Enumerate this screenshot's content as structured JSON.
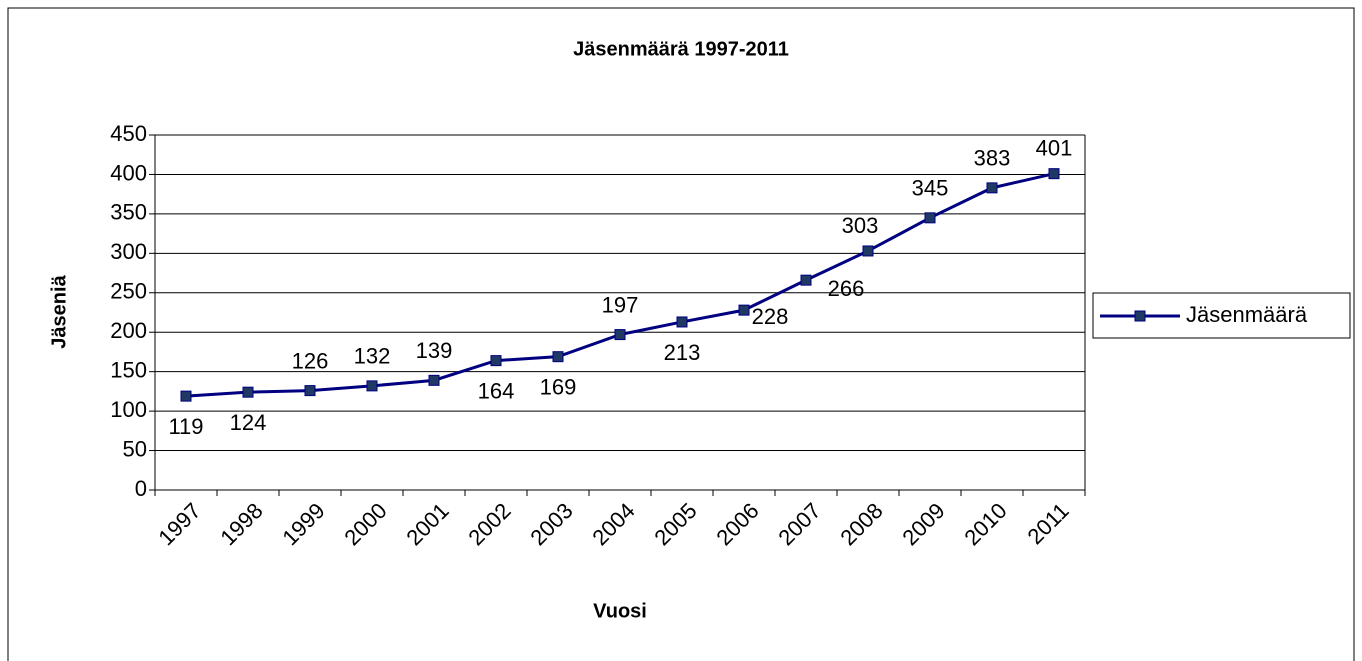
{
  "chart_data": {
    "type": "line",
    "title": "Jäsenmäärä 1997-2011",
    "x_label": "Vuosi",
    "y_label": "Jäseniä",
    "categories": [
      "1997",
      "1998",
      "1999",
      "2000",
      "2001",
      "2002",
      "2003",
      "2004",
      "2005",
      "2006",
      "2007",
      "2008",
      "2009",
      "2010",
      "2011"
    ],
    "series": [
      {
        "name": "Jäsenmäärä",
        "color": "#000080",
        "values": [
          119,
          124,
          126,
          132,
          139,
          164,
          169,
          197,
          213,
          228,
          266,
          303,
          345,
          383,
          401
        ]
      }
    ],
    "ylim": [
      0,
      450
    ],
    "yticks": [
      0,
      50,
      100,
      150,
      200,
      250,
      300,
      350,
      400,
      450
    ],
    "grid": true,
    "legend": "right"
  }
}
